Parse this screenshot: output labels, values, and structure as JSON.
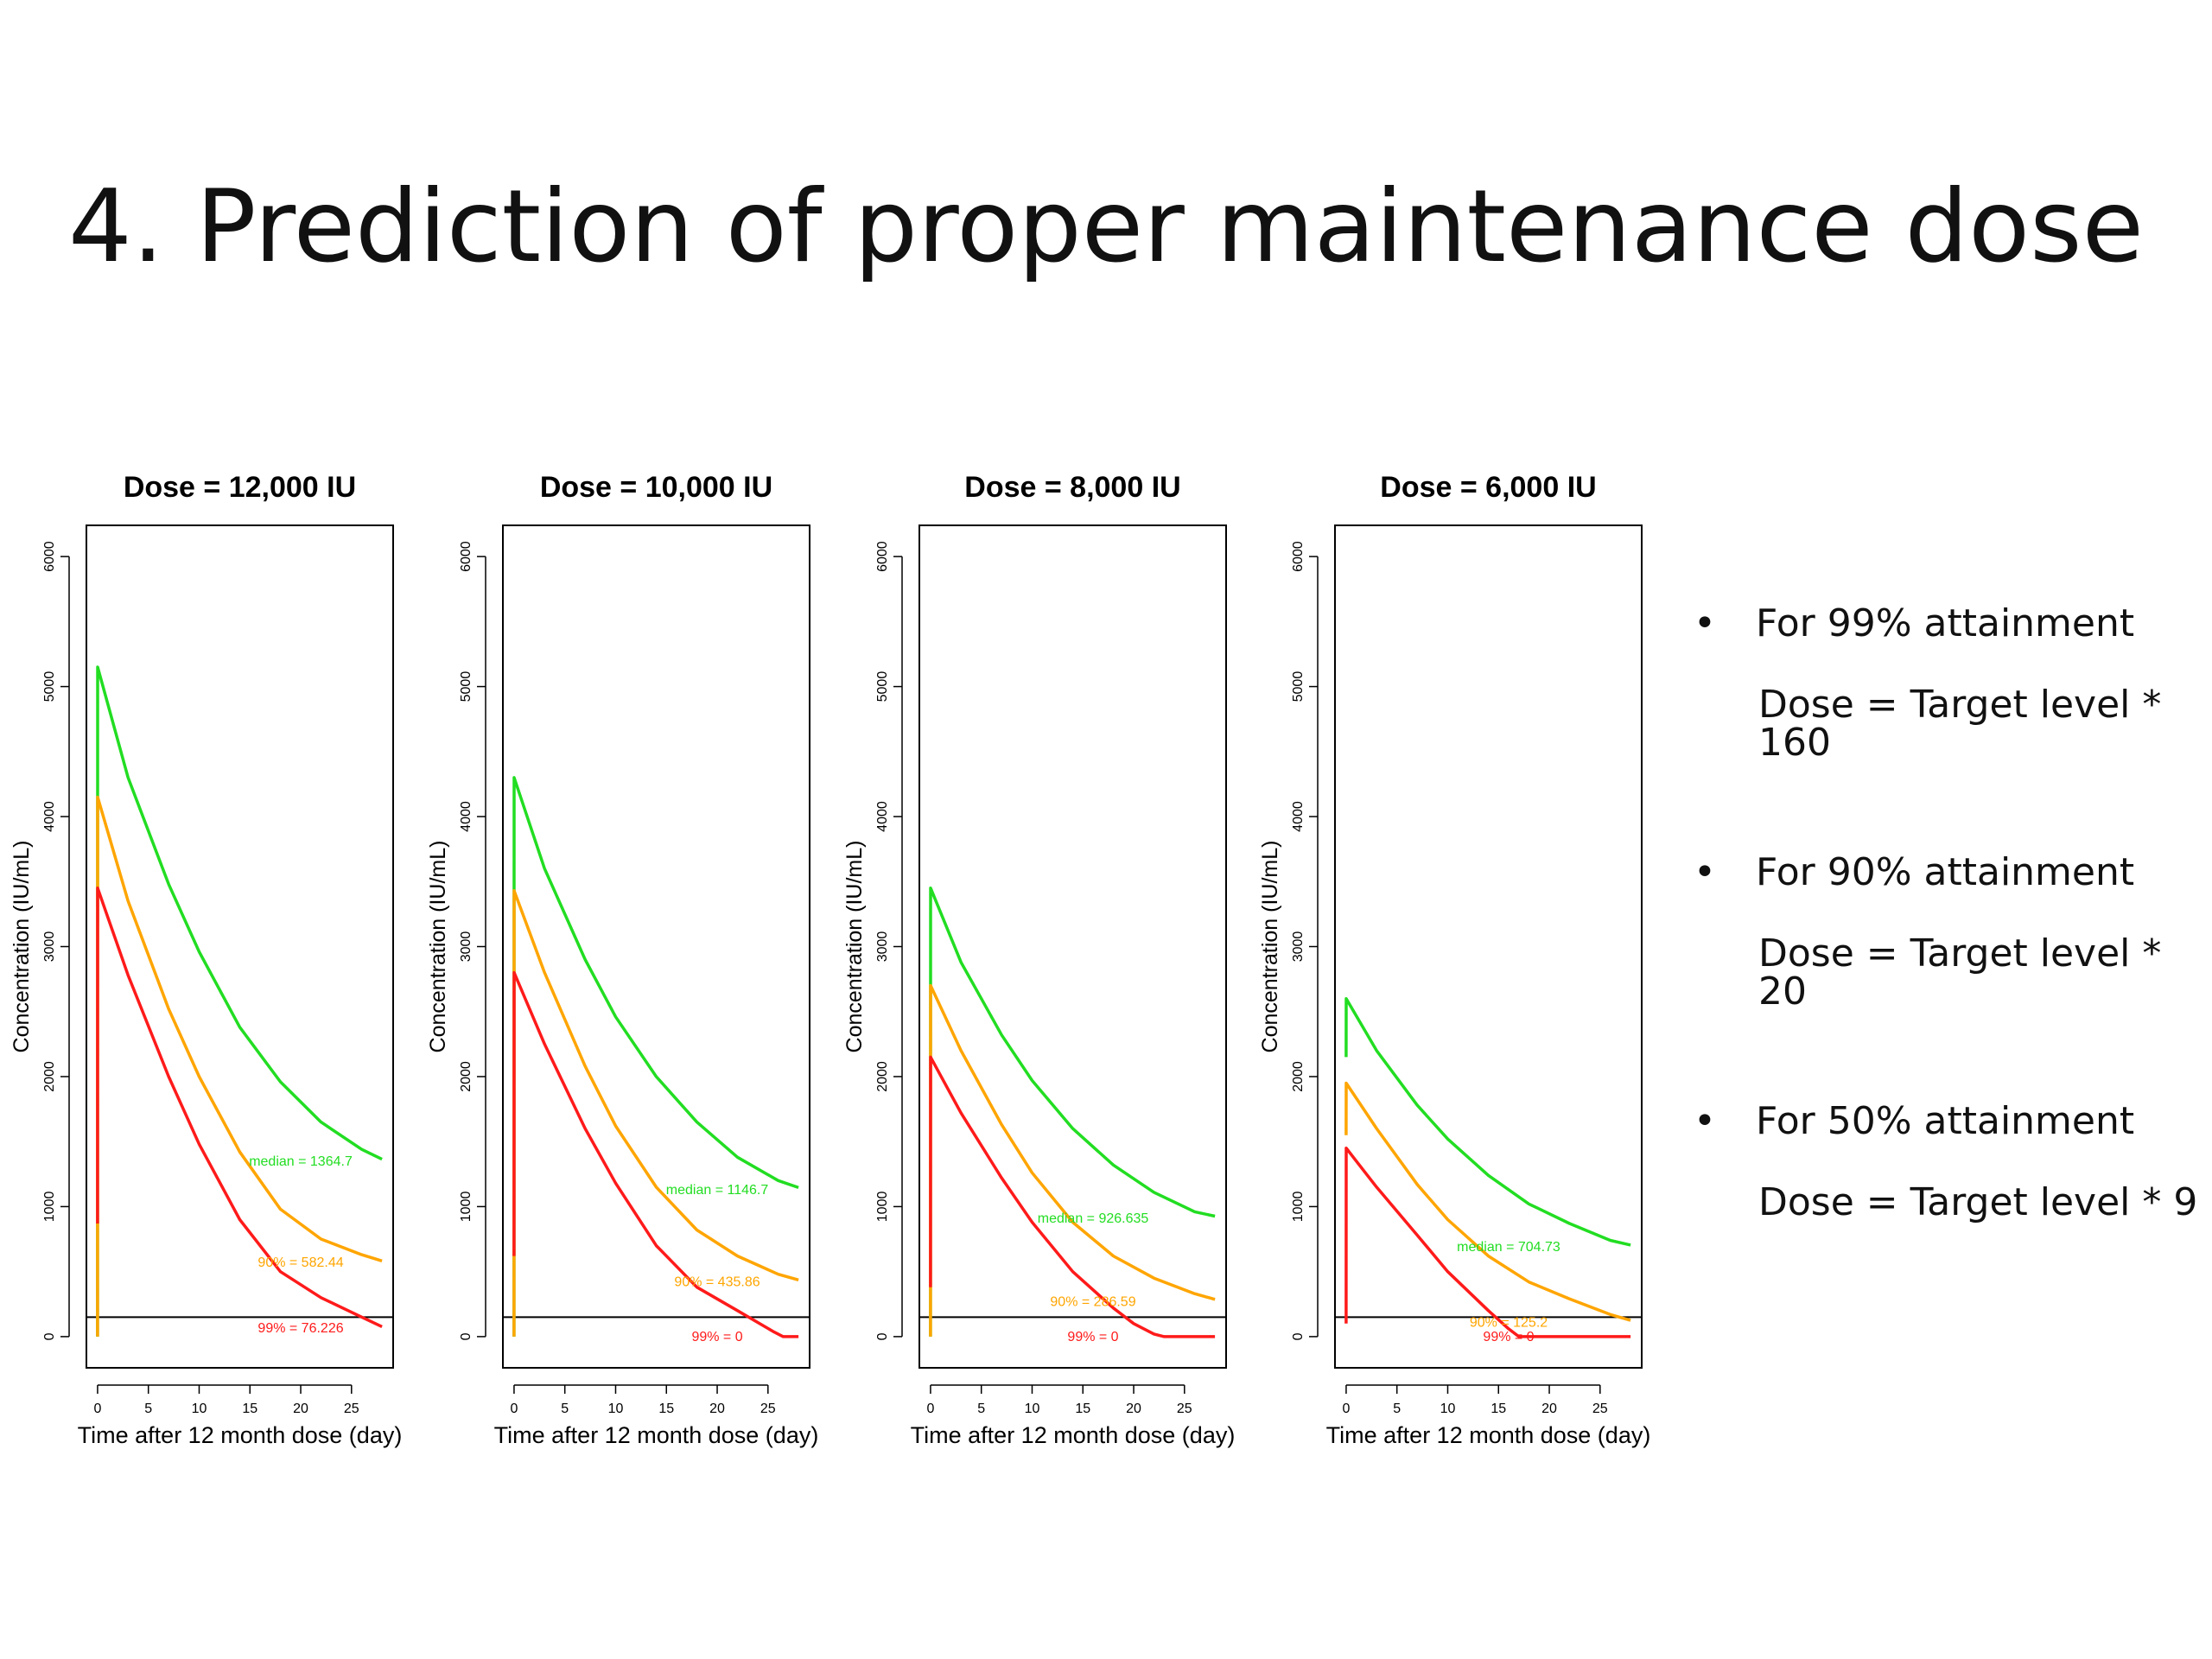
{
  "slide": {
    "title": "4. Prediction of proper maintenance dose"
  },
  "bullets": [
    {
      "marker": "•",
      "label": "For 99% attainment",
      "formula": "Dose = Target level * 160"
    },
    {
      "marker": "•",
      "label": "For 90% attainment",
      "formula": "Dose = Target level * 20"
    },
    {
      "marker": "•",
      "label": "For 50% attainment",
      "formula": "Dose = Target level * 9"
    }
  ],
  "colors": {
    "median": "#22dd22",
    "p90": "#ffa500",
    "p99": "#ff1a1a",
    "target": "#000000"
  },
  "chart_data": [
    {
      "type": "line",
      "title": "Dose = 12,000 IU",
      "xlabel": "Time after 12 month dose (day)",
      "ylabel": "Concentration (IU/mL)",
      "xticks": [
        0,
        5,
        10,
        15,
        20,
        25
      ],
      "yticks": [
        0,
        1000,
        2000,
        3000,
        4000,
        5000,
        6000
      ],
      "xlim": [
        -1.1,
        29.1
      ],
      "ylim": [
        -240,
        6240
      ],
      "target_level": 150,
      "series": [
        {
          "name": "median",
          "color": "#22dd22",
          "x": [
            0,
            0.01,
            3,
            7,
            10,
            14,
            18,
            22,
            26,
            28
          ],
          "y": [
            0,
            5150,
            4300,
            3480,
            2960,
            2380,
            1960,
            1650,
            1440,
            1364.7
          ]
        },
        {
          "name": "90%",
          "color": "#ffa500",
          "x": [
            0,
            0.01,
            3,
            7,
            10,
            14,
            18,
            22,
            26,
            28
          ],
          "y": [
            0,
            4150,
            3350,
            2520,
            2000,
            1420,
            980,
            750,
            630,
            582.44
          ]
        },
        {
          "name": "99%",
          "color": "#ff1a1a",
          "x": [
            0,
            0.01,
            3,
            7,
            10,
            14,
            18,
            22,
            26,
            28
          ],
          "y": [
            870,
            3450,
            2780,
            2000,
            1480,
            900,
            500,
            300,
            150,
            76.226
          ]
        }
      ],
      "annotations": [
        {
          "label": "median",
          "sep": "=",
          "value": "1364.7",
          "color": "#22dd22",
          "x": 20,
          "y": 1350
        },
        {
          "label": "90%",
          "sep": "=",
          "value": "582.44",
          "color": "#ffa500",
          "x": 20,
          "y": 570
        },
        {
          "label": "99%",
          "sep": "=",
          "value": "76.226",
          "color": "#ff1a1a",
          "x": 20,
          "y": 65
        }
      ]
    },
    {
      "type": "line",
      "title": "Dose = 10,000 IU",
      "xlabel": "Time after 12 month dose (day)",
      "ylabel": "Concentration (IU/mL)",
      "xticks": [
        0,
        5,
        10,
        15,
        20,
        25
      ],
      "yticks": [
        0,
        1000,
        2000,
        3000,
        4000,
        5000,
        6000
      ],
      "xlim": [
        -1.1,
        29.1
      ],
      "ylim": [
        -240,
        6240
      ],
      "target_level": 150,
      "series": [
        {
          "name": "median",
          "color": "#22dd22",
          "x": [
            0,
            0.01,
            3,
            7,
            10,
            14,
            18,
            22,
            26,
            28
          ],
          "y": [
            0,
            4300,
            3600,
            2900,
            2460,
            2000,
            1650,
            1380,
            1200,
            1146.7
          ]
        },
        {
          "name": "90%",
          "color": "#ffa500",
          "x": [
            0,
            0.01,
            3,
            7,
            10,
            14,
            18,
            22,
            26,
            28
          ],
          "y": [
            0,
            3430,
            2800,
            2080,
            1620,
            1150,
            820,
            620,
            480,
            435.86
          ]
        },
        {
          "name": "99%",
          "color": "#ff1a1a",
          "x": [
            0,
            0.01,
            3,
            7,
            10,
            14,
            18,
            22,
            25.5,
            26.5,
            28
          ],
          "y": [
            620,
            2800,
            2250,
            1600,
            1180,
            700,
            380,
            200,
            40,
            0,
            0
          ]
        }
      ],
      "annotations": [
        {
          "label": "median",
          "sep": "=",
          "value": "1146.7",
          "color": "#22dd22",
          "x": 20,
          "y": 1130
        },
        {
          "label": "90%",
          "sep": "=",
          "value": "435.86",
          "color": "#ffa500",
          "x": 20,
          "y": 420
        },
        {
          "label": "99%",
          "sep": "=",
          "value": "0",
          "color": "#ff1a1a",
          "x": 20,
          "y": 0
        }
      ]
    },
    {
      "type": "line",
      "title": "Dose = 8,000 IU",
      "xlabel": "Time after 12 month dose (day)",
      "ylabel": "Concentration (IU/mL)",
      "xticks": [
        0,
        5,
        10,
        15,
        20,
        25
      ],
      "yticks": [
        0,
        1000,
        2000,
        3000,
        4000,
        5000,
        6000
      ],
      "xlim": [
        -1.1,
        29.1
      ],
      "ylim": [
        -240,
        6240
      ],
      "target_level": 150,
      "series": [
        {
          "name": "median",
          "color": "#22dd22",
          "x": [
            0,
            0.01,
            3,
            7,
            10,
            14,
            18,
            22,
            26,
            28
          ],
          "y": [
            0,
            3450,
            2880,
            2320,
            1970,
            1600,
            1320,
            1110,
            960,
            926.635
          ]
        },
        {
          "name": "90%",
          "color": "#ffa500",
          "x": [
            0,
            0.01,
            3,
            7,
            10,
            14,
            18,
            22,
            26,
            28
          ],
          "y": [
            0,
            2700,
            2200,
            1630,
            1260,
            880,
            620,
            450,
            330,
            286.59
          ]
        },
        {
          "name": "99%",
          "color": "#ff1a1a",
          "x": [
            0,
            0.01,
            3,
            7,
            10,
            14,
            18,
            20,
            22,
            23,
            28
          ],
          "y": [
            380,
            2150,
            1720,
            1220,
            880,
            500,
            220,
            100,
            20,
            0,
            0
          ]
        }
      ],
      "annotations": [
        {
          "label": "median",
          "sep": "=",
          "value": "926.635",
          "color": "#22dd22",
          "x": 16,
          "y": 910
        },
        {
          "label": "90%",
          "sep": "=",
          "value": "286.59",
          "color": "#ffa500",
          "x": 16,
          "y": 270
        },
        {
          "label": "99%",
          "sep": "=",
          "value": "0",
          "color": "#ff1a1a",
          "x": 16,
          "y": 0
        }
      ]
    },
    {
      "type": "line",
      "title": "Dose = 6,000 IU",
      "xlabel": "Time after 12 month dose (day)",
      "ylabel": "Concentration (IU/mL)",
      "xticks": [
        0,
        5,
        10,
        15,
        20,
        25
      ],
      "yticks": [
        0,
        1000,
        2000,
        3000,
        4000,
        5000,
        6000
      ],
      "xlim": [
        -1.1,
        29.1
      ],
      "ylim": [
        -240,
        6240
      ],
      "target_level": 150,
      "series": [
        {
          "name": "median",
          "color": "#22dd22",
          "x": [
            0,
            0.01,
            3,
            7,
            10,
            14,
            18,
            22,
            26,
            28
          ],
          "y": [
            2150,
            2600,
            2200,
            1780,
            1520,
            1240,
            1020,
            870,
            740,
            704.73
          ]
        },
        {
          "name": "90%",
          "color": "#ffa500",
          "x": [
            0,
            0.01,
            3,
            7,
            10,
            14,
            18,
            22,
            26,
            28
          ],
          "y": [
            1550,
            1950,
            1600,
            1170,
            900,
            620,
            420,
            290,
            170,
            125.2
          ]
        },
        {
          "name": "99%",
          "color": "#ff1a1a",
          "x": [
            0,
            0.01,
            1,
            3,
            7,
            10,
            14,
            16,
            17,
            28
          ],
          "y": [
            100,
            1450,
            1350,
            1150,
            780,
            500,
            200,
            60,
            0,
            0
          ]
        }
      ],
      "annotations": [
        {
          "label": "median",
          "sep": "=",
          "value": "704.73",
          "color": "#22dd22",
          "x": 16,
          "y": 690
        },
        {
          "label": "90%",
          "sep": "=",
          "value": "125.2",
          "color": "#ffa500",
          "x": 16,
          "y": 110
        },
        {
          "label": "99%",
          "sep": "=",
          "value": "0",
          "color": "#ff1a1a",
          "x": 16,
          "y": 0
        }
      ]
    }
  ]
}
